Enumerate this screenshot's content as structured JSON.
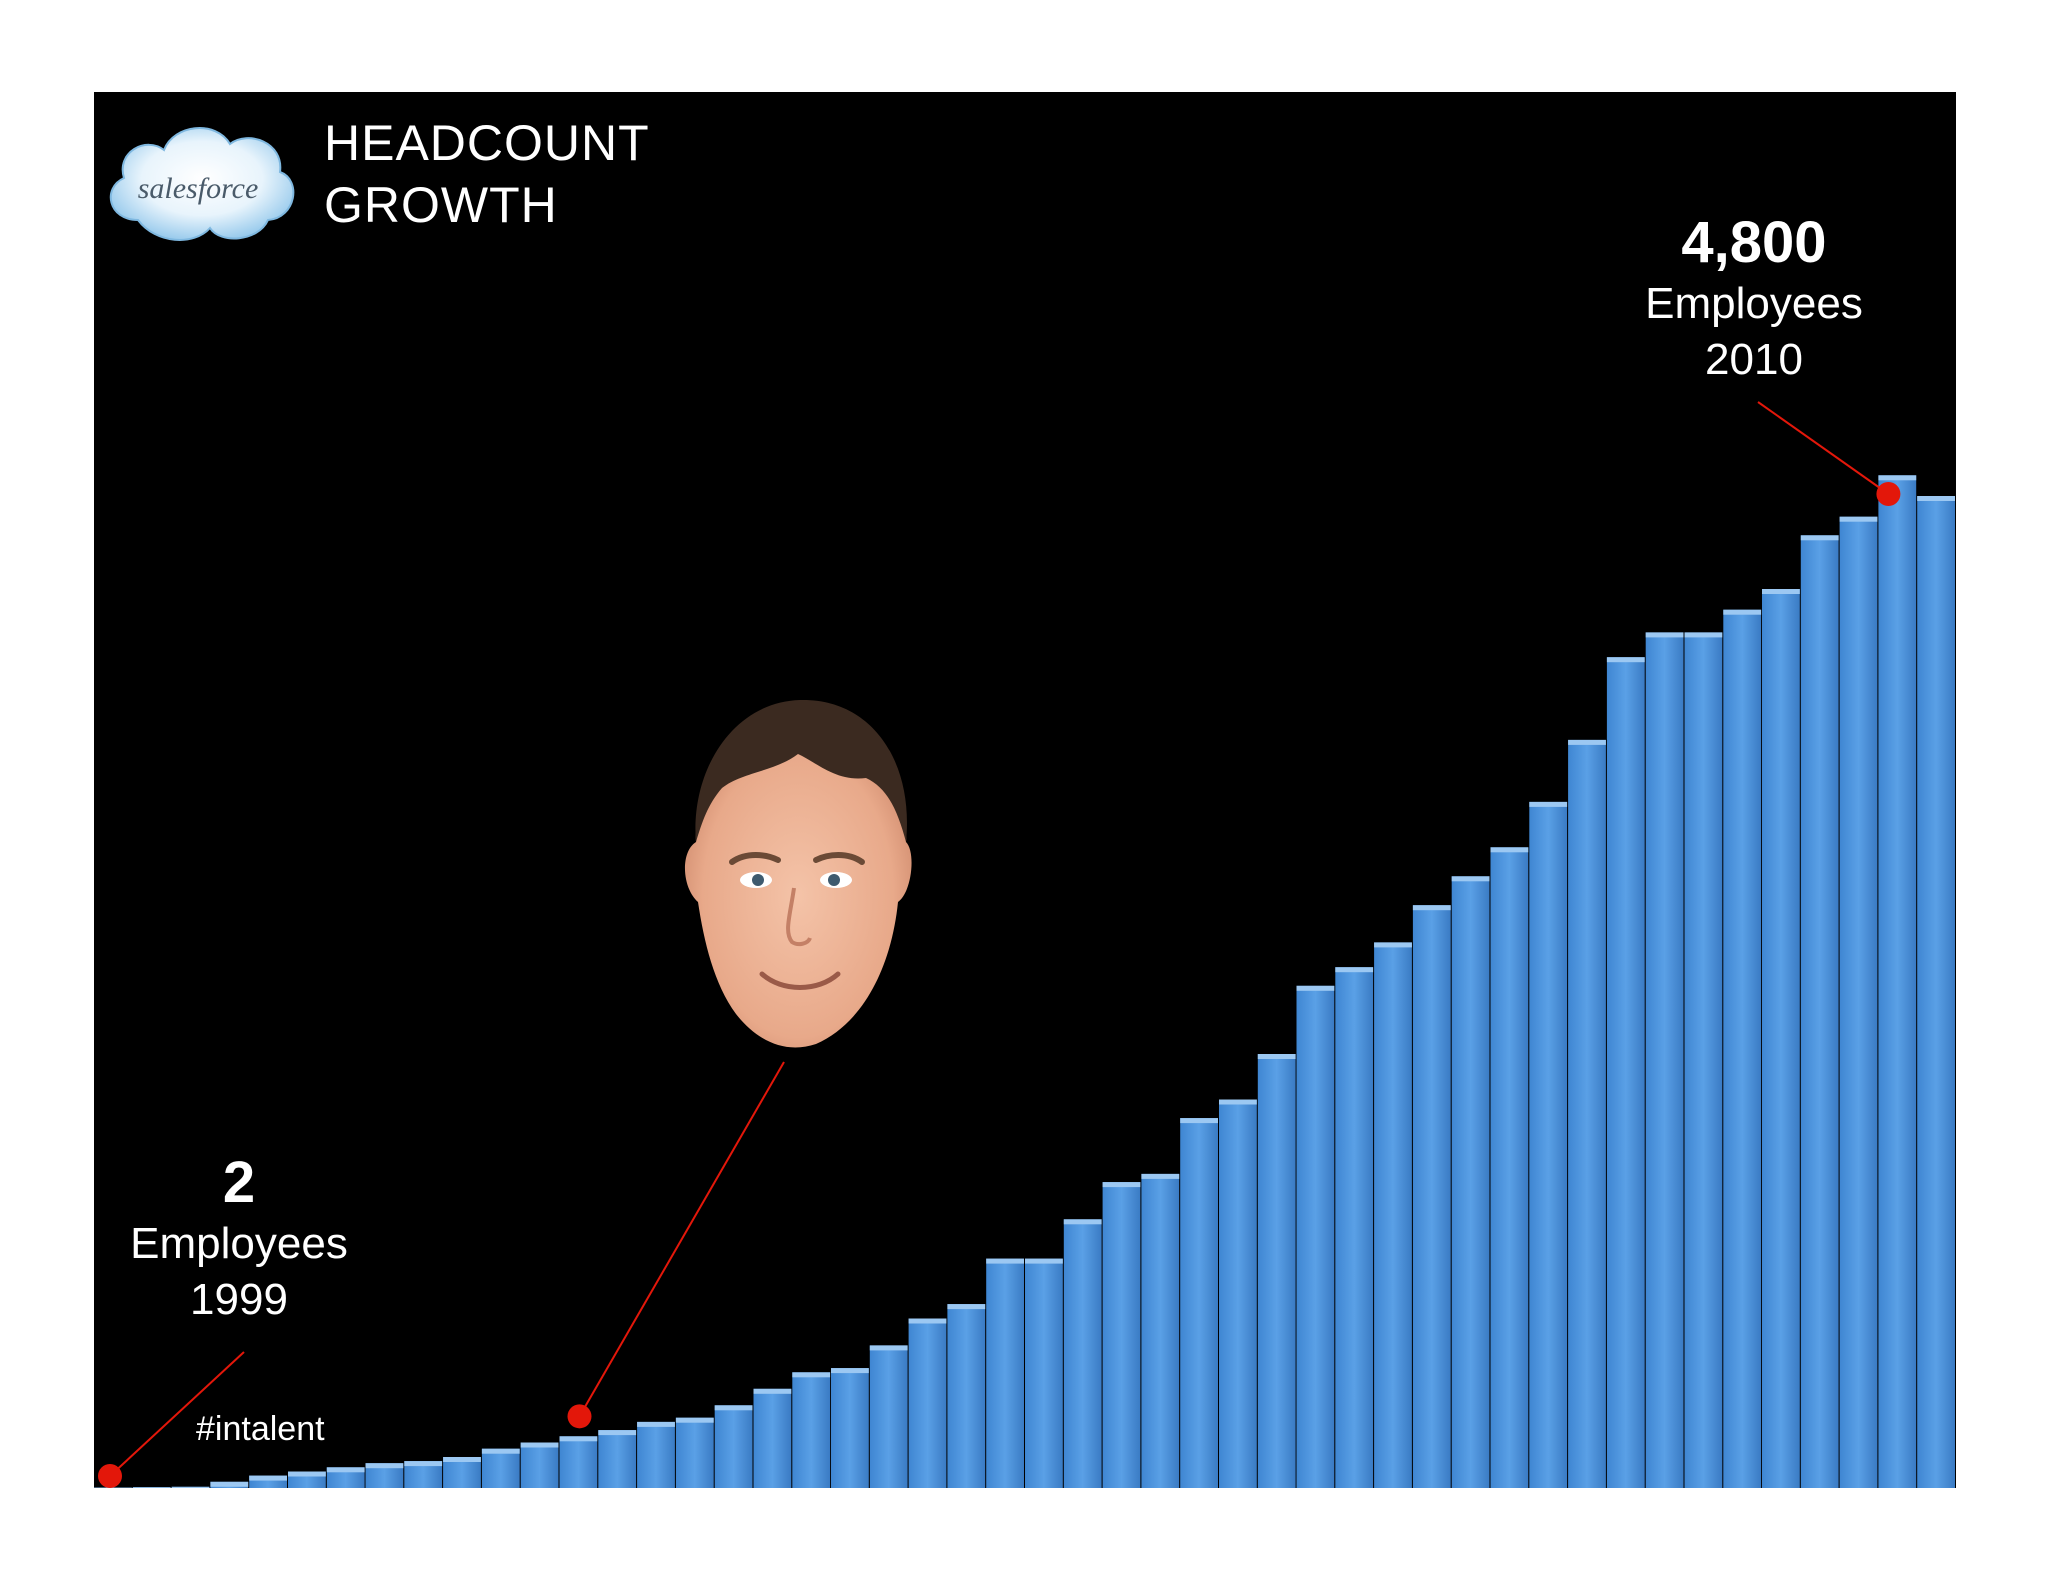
{
  "logo": {
    "text": "salesforce"
  },
  "title": {
    "line1": "HEADCOUNT",
    "line2": "GROWTH"
  },
  "hashtag": "#intalent",
  "callouts": {
    "start": {
      "number": "2",
      "label": "Employees",
      "year": "1999"
    },
    "end": {
      "number": "4,800",
      "label": "Employees",
      "year": "2010"
    }
  },
  "colors": {
    "background": "#000000",
    "bar": "#4a90d9",
    "bar_top": "#9cc8f2",
    "marker": "#e3170a",
    "logo_cloud": "#a9d4f0"
  },
  "chart_data": {
    "type": "bar",
    "title": "HEADCOUNT GROWTH",
    "xlabel": "",
    "ylabel": "",
    "grid": false,
    "legend": "none",
    "ylim": [
      0,
      4800
    ],
    "values": [
      2,
      4,
      6,
      30,
      60,
      80,
      100,
      120,
      130,
      150,
      190,
      220,
      250,
      280,
      320,
      340,
      400,
      480,
      560,
      580,
      690,
      820,
      890,
      1110,
      1110,
      1300,
      1480,
      1520,
      1790,
      1880,
      2100,
      2430,
      2520,
      2640,
      2820,
      2960,
      3100,
      3320,
      3620,
      4020,
      4140,
      4140,
      4250,
      4350,
      4610,
      4700,
      4900,
      4800
    ],
    "annotations": [
      {
        "text": "2 Employees 1999",
        "index": 0
      },
      {
        "text": "",
        "index": 12
      },
      {
        "text": "4,800 Employees 2010",
        "index": 46
      }
    ]
  }
}
